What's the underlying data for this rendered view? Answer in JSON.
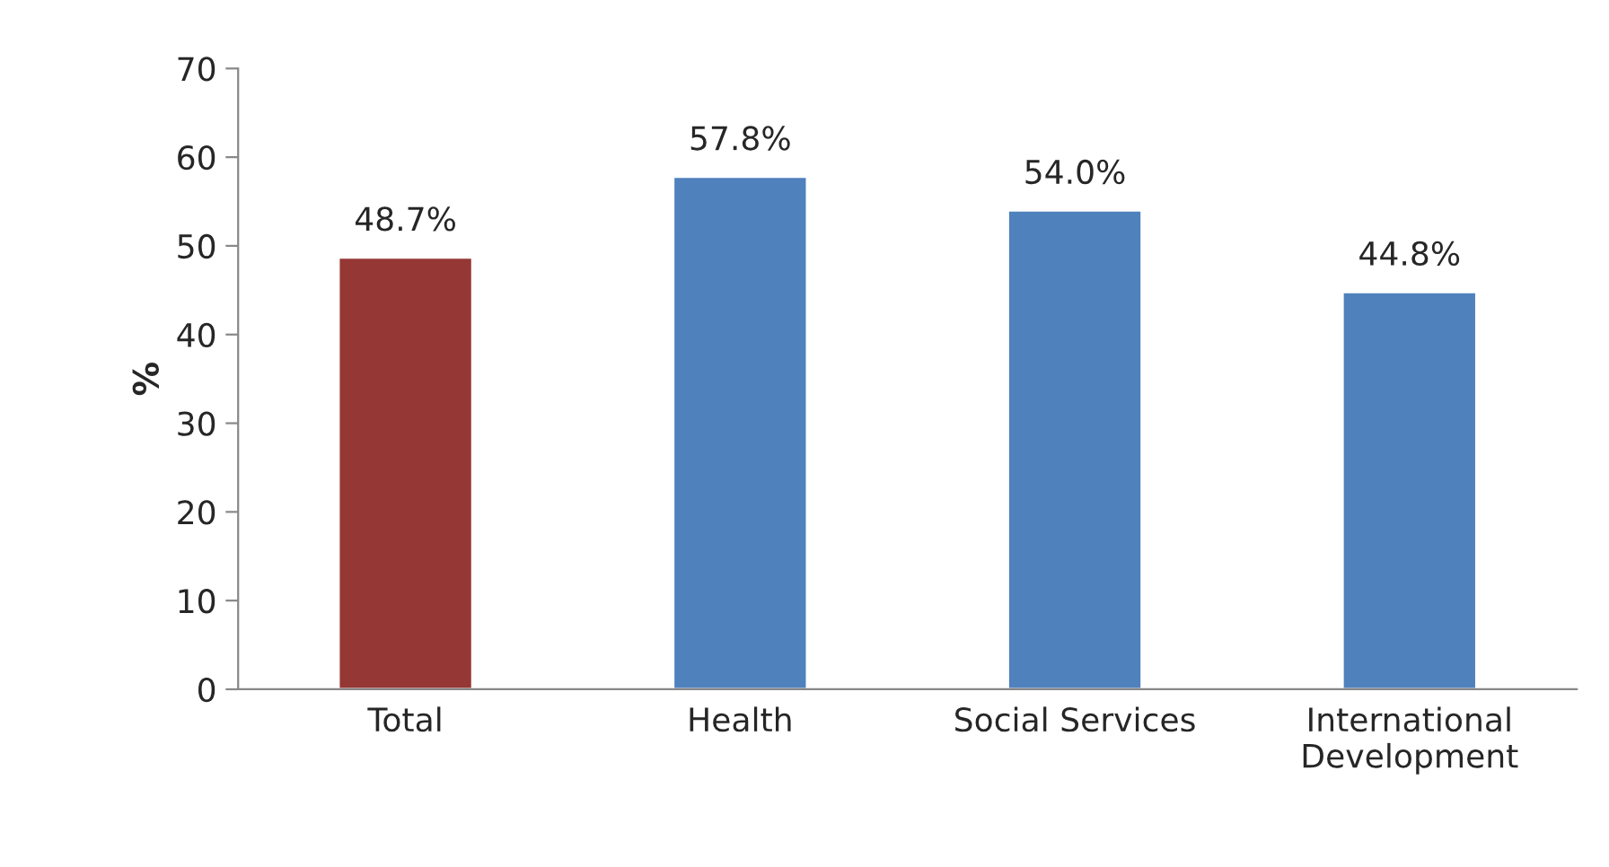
{
  "chart_data": {
    "type": "bar",
    "categories": [
      "Total",
      "Health",
      "Social Services",
      "International Development"
    ],
    "values": [
      48.7,
      57.8,
      54.0,
      44.8
    ],
    "colors": [
      "#953735",
      "#4f81bd",
      "#4f81bd",
      "#4f81bd"
    ],
    "value_labels": [
      "48.7%",
      "57.8%",
      "54.0%",
      "44.8%"
    ],
    "ylabel": "%",
    "ylim": [
      0,
      70
    ],
    "yticks": [
      0,
      10,
      20,
      30,
      40,
      50,
      60,
      70
    ],
    "grid": false,
    "legend": false
  }
}
